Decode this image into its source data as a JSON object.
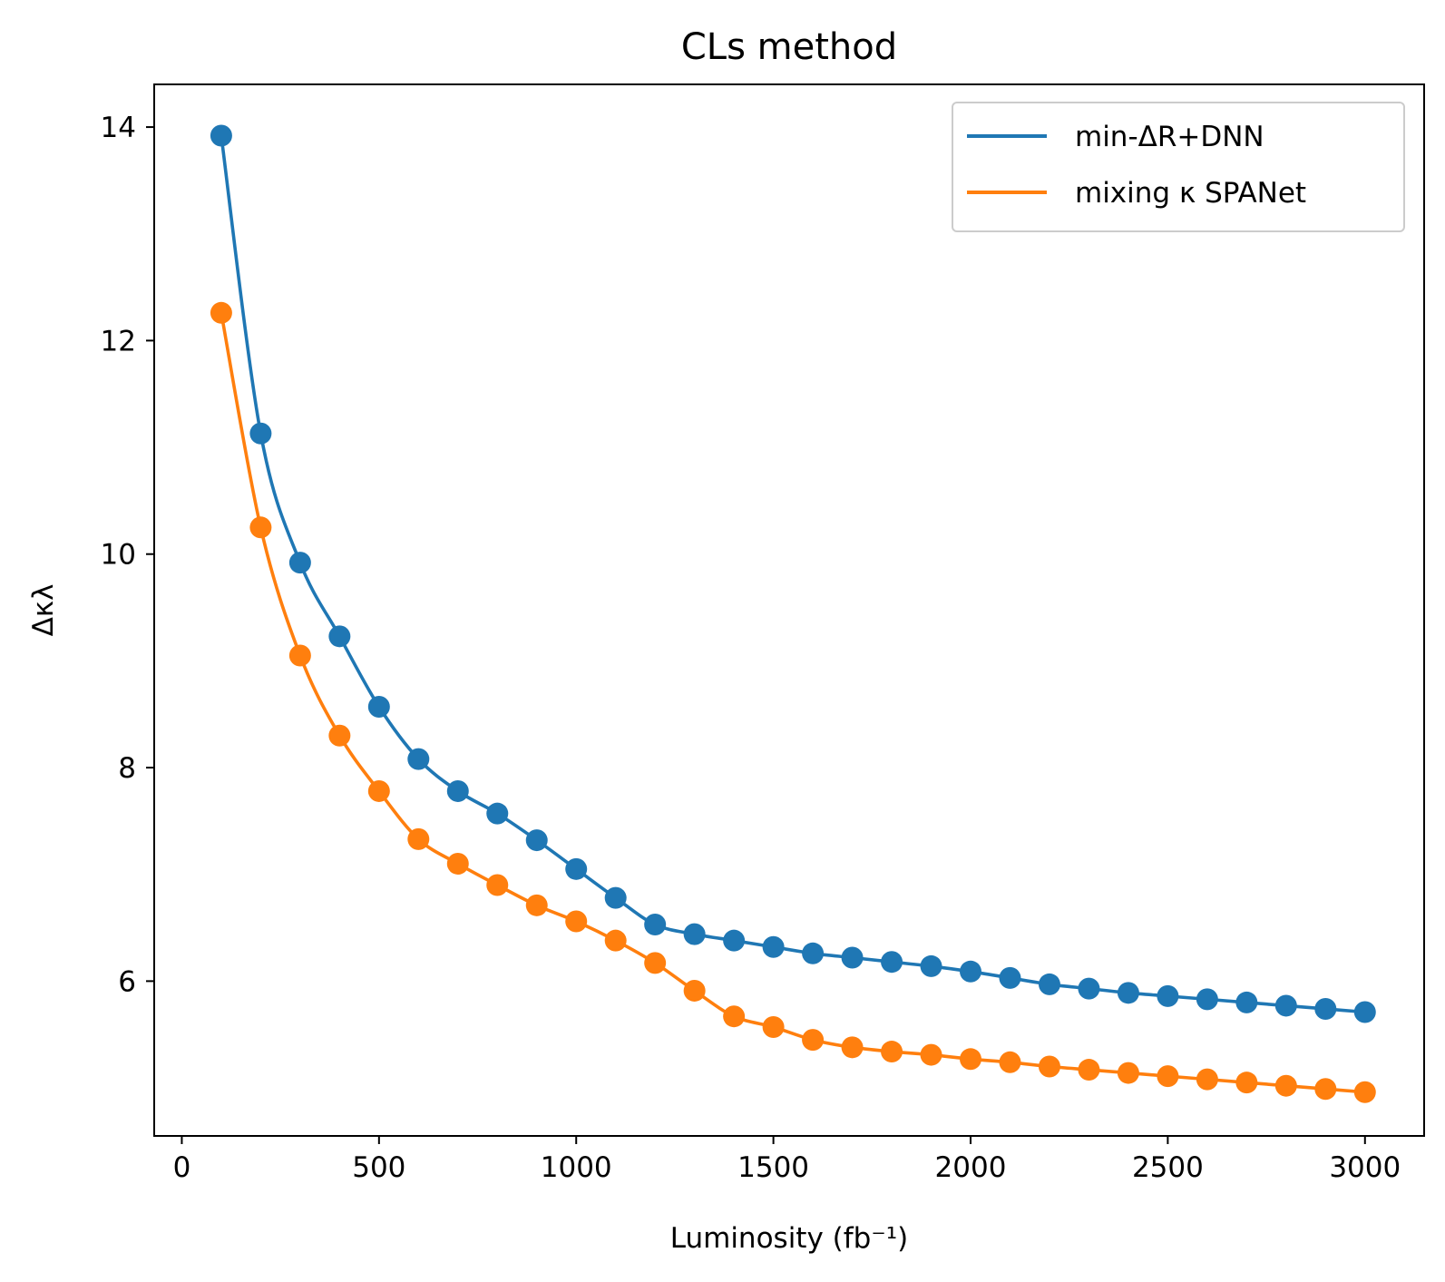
{
  "chart_data": {
    "type": "line",
    "title": "CLs method",
    "xlabel": "Luminosity (fb⁻¹)",
    "ylabel": "Δκλ",
    "xlim": [
      -70,
      3150
    ],
    "ylim": [
      4.55,
      14.4
    ],
    "xticks": [
      "0",
      "500",
      "1000",
      "1500",
      "2000",
      "2500",
      "3000"
    ],
    "yticks": [
      "6",
      "8",
      "10",
      "12",
      "14"
    ],
    "legend_placement": "top-right",
    "grid": false,
    "markers": true,
    "x": [
      100,
      200,
      300,
      400,
      500,
      600,
      700,
      800,
      900,
      1000,
      1100,
      1200,
      1300,
      1400,
      1500,
      1600,
      1700,
      1800,
      1900,
      2000,
      2100,
      2200,
      2300,
      2400,
      2500,
      2600,
      2700,
      2800,
      2900,
      3000
    ],
    "series": [
      {
        "name": "min-ΔR+DNN",
        "color": "#1f77b4",
        "values": [
          13.92,
          11.13,
          9.92,
          9.23,
          8.57,
          8.08,
          7.78,
          7.57,
          7.32,
          7.05,
          6.78,
          6.53,
          6.44,
          6.38,
          6.32,
          6.26,
          6.22,
          6.18,
          6.14,
          6.09,
          6.03,
          5.97,
          5.93,
          5.89,
          5.86,
          5.83,
          5.8,
          5.77,
          5.74,
          5.71
        ]
      },
      {
        "name": "mixing κ SPANet",
        "color": "#ff7f0e",
        "values": [
          12.26,
          10.25,
          9.05,
          8.3,
          7.78,
          7.33,
          7.1,
          6.9,
          6.71,
          6.56,
          6.38,
          6.17,
          5.91,
          5.67,
          5.57,
          5.45,
          5.38,
          5.34,
          5.31,
          5.27,
          5.24,
          5.2,
          5.17,
          5.14,
          5.11,
          5.08,
          5.05,
          5.02,
          4.99,
          4.96
        ]
      }
    ]
  }
}
